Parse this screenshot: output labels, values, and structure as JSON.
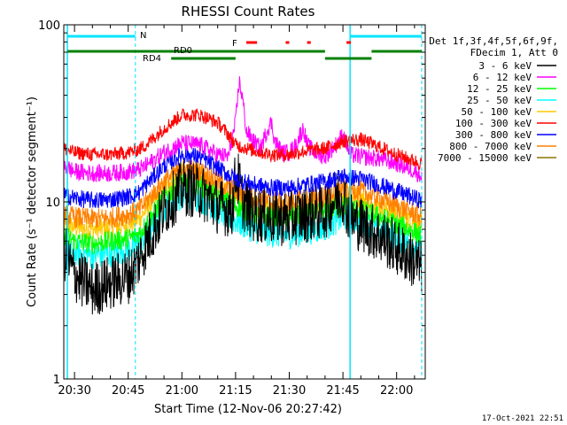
{
  "chart_data": {
    "type": "line",
    "title": "RHESSI Count Rates",
    "xlabel": "Start Time (12-Nov-06 20:27:42)",
    "ylabel": "Count Rate (s⁻¹ detector segment⁻¹)",
    "y_scale": "log",
    "ylim": [
      1,
      100
    ],
    "x_range_minutes": [
      "20:27",
      "22:08"
    ],
    "x_ticks": [
      "20:30",
      "20:45",
      "21:00",
      "21:15",
      "21:30",
      "21:45",
      "22:00"
    ],
    "y_ticks": [
      "1",
      "10",
      "100"
    ],
    "timestamp": "17-Oct-2021 22:51",
    "legend": {
      "header": [
        "Det 1f,3f,4f,5f,6f,9f,",
        "FDecim 1, Att 0"
      ],
      "placement": "right"
    },
    "bars": {
      "N": {
        "label": "N",
        "color": "#00e5ff",
        "segments": [
          [
            "20:28",
            "20:47"
          ],
          [
            "21:47",
            "22:07"
          ]
        ]
      },
      "RD0": {
        "label": "RD0",
        "color": "#008000",
        "segments": [
          [
            "20:28",
            "21:16"
          ],
          [
            "21:16",
            "21:40"
          ],
          [
            "21:53",
            "22:07"
          ]
        ]
      },
      "RD4": {
        "label": "RD4",
        "color": "#008000",
        "segments": [
          [
            "20:57",
            "21:15"
          ],
          [
            "21:40",
            "21:53"
          ]
        ]
      },
      "F": {
        "label": "F",
        "color": "#ff0000",
        "segments": [
          [
            "21:18",
            "21:21"
          ],
          [
            "21:29",
            "21:30"
          ],
          [
            "21:35",
            "21:36"
          ],
          [
            "21:46",
            "21:46"
          ]
        ]
      }
    },
    "vlines_solid": [
      "20:28",
      "21:47"
    ],
    "vlines_dashed": [
      "20:47",
      "22:07"
    ],
    "series": [
      {
        "name": "3 - 6 keV",
        "color": "#000000",
        "points": [
          [
            "20:27",
            5.2
          ],
          [
            "20:30",
            3.9
          ],
          [
            "20:35",
            3.2
          ],
          [
            "20:40",
            3.5
          ],
          [
            "20:45",
            3.8
          ],
          [
            "20:47",
            4.3
          ],
          [
            "20:50",
            5.8
          ],
          [
            "20:55",
            9.0
          ],
          [
            "21:00",
            12.0
          ],
          [
            "21:05",
            11.5
          ],
          [
            "21:10",
            9.5
          ],
          [
            "21:14",
            9.0
          ],
          [
            "21:15",
            14.0
          ],
          [
            "21:16",
            13.0
          ],
          [
            "21:17",
            10.0
          ],
          [
            "21:20",
            8.5
          ],
          [
            "21:25",
            8.2
          ],
          [
            "21:30",
            8.0
          ],
          [
            "21:35",
            8.5
          ],
          [
            "21:40",
            8.8
          ],
          [
            "21:43",
            10.5
          ],
          [
            "21:45",
            11.0
          ],
          [
            "21:47",
            8.0
          ],
          [
            "21:50",
            7.5
          ],
          [
            "21:55",
            6.5
          ],
          [
            "22:00",
            5.5
          ],
          [
            "22:05",
            4.6
          ],
          [
            "22:07",
            4.2
          ]
        ]
      },
      {
        "name": "6 - 12 keV",
        "color": "#ff00ff",
        "points": [
          [
            "20:27",
            16.0
          ],
          [
            "20:30",
            14.8
          ],
          [
            "20:35",
            14.5
          ],
          [
            "20:40",
            14.5
          ],
          [
            "20:45",
            14.8
          ],
          [
            "20:48",
            15.2
          ],
          [
            "20:50",
            16.0
          ],
          [
            "20:55",
            19.0
          ],
          [
            "21:00",
            21.5
          ],
          [
            "21:05",
            21.0
          ],
          [
            "21:10",
            18.5
          ],
          [
            "21:13",
            18.0
          ],
          [
            "21:15",
            28.0
          ],
          [
            "21:16",
            48.0
          ],
          [
            "21:17",
            38.0
          ],
          [
            "21:18",
            25.0
          ],
          [
            "21:20",
            22.0
          ],
          [
            "21:22",
            20.0
          ],
          [
            "21:24",
            26.0
          ],
          [
            "21:25",
            28.0
          ],
          [
            "21:26",
            22.0
          ],
          [
            "21:28",
            19.0
          ],
          [
            "21:30",
            19.0
          ],
          [
            "21:32",
            21.0
          ],
          [
            "21:33",
            24.0
          ],
          [
            "21:34",
            26.0
          ],
          [
            "21:35",
            21.0
          ],
          [
            "21:37",
            19.0
          ],
          [
            "21:40",
            18.0
          ],
          [
            "21:43",
            21.0
          ],
          [
            "21:45",
            24.0
          ],
          [
            "21:47",
            18.5
          ],
          [
            "21:50",
            18.0
          ],
          [
            "21:55",
            17.5
          ],
          [
            "22:00",
            16.5
          ],
          [
            "22:05",
            15.0
          ],
          [
            "22:07",
            14.0
          ]
        ]
      },
      {
        "name": "12 - 25 keV",
        "color": "#00ff00",
        "points": [
          [
            "20:27",
            6.5
          ],
          [
            "20:30",
            6.0
          ],
          [
            "20:35",
            5.8
          ],
          [
            "20:40",
            6.0
          ],
          [
            "20:45",
            6.2
          ],
          [
            "20:48",
            6.6
          ],
          [
            "20:50",
            7.5
          ],
          [
            "20:55",
            10.5
          ],
          [
            "21:00",
            13.0
          ],
          [
            "21:05",
            12.5
          ],
          [
            "21:10",
            10.5
          ],
          [
            "21:15",
            9.5
          ],
          [
            "21:20",
            8.5
          ],
          [
            "21:25",
            8.2
          ],
          [
            "21:30",
            8.2
          ],
          [
            "21:35",
            8.5
          ],
          [
            "21:40",
            8.8
          ],
          [
            "21:45",
            9.5
          ],
          [
            "21:50",
            9.0
          ],
          [
            "21:55",
            8.3
          ],
          [
            "22:00",
            7.5
          ],
          [
            "22:05",
            6.8
          ],
          [
            "22:07",
            6.4
          ]
        ]
      },
      {
        "name": "25 - 50 keV",
        "color": "#00ffff",
        "points": [
          [
            "20:27",
            5.5
          ],
          [
            "20:30",
            5.2
          ],
          [
            "20:35",
            5.0
          ],
          [
            "20:40",
            5.1
          ],
          [
            "20:45",
            5.4
          ],
          [
            "20:48",
            5.8
          ],
          [
            "20:50",
            6.5
          ],
          [
            "20:55",
            9.0
          ],
          [
            "21:00",
            11.0
          ],
          [
            "21:05",
            10.5
          ],
          [
            "21:10",
            9.0
          ],
          [
            "21:15",
            7.8
          ],
          [
            "21:20",
            7.0
          ],
          [
            "21:25",
            6.6
          ],
          [
            "21:30",
            6.5
          ],
          [
            "21:35",
            6.8
          ],
          [
            "21:40",
            7.2
          ],
          [
            "21:45",
            8.2
          ],
          [
            "21:50",
            7.8
          ],
          [
            "21:55",
            7.0
          ],
          [
            "22:00",
            6.3
          ],
          [
            "22:05",
            5.7
          ],
          [
            "22:07",
            5.4
          ]
        ]
      },
      {
        "name": "50 - 100 keV",
        "color": "#ffc800",
        "points": [
          [
            "20:27",
            7.5
          ],
          [
            "20:30",
            7.2
          ],
          [
            "20:35",
            7.0
          ],
          [
            "20:40",
            7.1
          ],
          [
            "20:45",
            7.5
          ],
          [
            "20:48",
            8.0
          ],
          [
            "20:50",
            9.0
          ],
          [
            "20:55",
            12.0
          ],
          [
            "21:00",
            14.5
          ],
          [
            "21:05",
            14.0
          ],
          [
            "21:10",
            12.0
          ],
          [
            "21:15",
            10.5
          ],
          [
            "21:20",
            9.5
          ],
          [
            "21:25",
            9.2
          ],
          [
            "21:30",
            9.0
          ],
          [
            "21:35",
            9.3
          ],
          [
            "21:40",
            9.8
          ],
          [
            "21:45",
            11.0
          ],
          [
            "21:50",
            10.5
          ],
          [
            "21:55",
            9.5
          ],
          [
            "22:00",
            8.6
          ],
          [
            "22:05",
            7.8
          ],
          [
            "22:07",
            7.4
          ]
        ]
      },
      {
        "name": "100 - 300 keV",
        "color": "#ff0000",
        "points": [
          [
            "20:27",
            20.0
          ],
          [
            "20:30",
            19.0
          ],
          [
            "20:35",
            18.5
          ],
          [
            "20:40",
            18.5
          ],
          [
            "20:45",
            19.0
          ],
          [
            "20:48",
            19.8
          ],
          [
            "20:50",
            21.0
          ],
          [
            "20:55",
            26.0
          ],
          [
            "21:00",
            31.0
          ],
          [
            "21:05",
            31.0
          ],
          [
            "21:10",
            28.0
          ],
          [
            "21:13",
            24.0
          ],
          [
            "21:15",
            21.0
          ],
          [
            "21:20",
            19.5
          ],
          [
            "21:25",
            18.5
          ],
          [
            "21:30",
            18.5
          ],
          [
            "21:35",
            19.5
          ],
          [
            "21:40",
            20.0
          ],
          [
            "21:45",
            22.0
          ],
          [
            "21:50",
            22.5
          ],
          [
            "21:55",
            20.5
          ],
          [
            "22:00",
            18.5
          ],
          [
            "22:05",
            17.0
          ],
          [
            "22:07",
            16.5
          ]
        ]
      },
      {
        "name": "300 - 800 keV",
        "color": "#0000ff",
        "points": [
          [
            "20:27",
            11.0
          ],
          [
            "20:30",
            10.5
          ],
          [
            "20:35",
            10.2
          ],
          [
            "20:40",
            10.3
          ],
          [
            "20:45",
            10.7
          ],
          [
            "20:48",
            11.3
          ],
          [
            "20:50",
            12.5
          ],
          [
            "20:55",
            16.0
          ],
          [
            "21:00",
            18.5
          ],
          [
            "21:05",
            18.0
          ],
          [
            "21:10",
            15.5
          ],
          [
            "21:15",
            13.5
          ],
          [
            "21:20",
            12.5
          ],
          [
            "21:25",
            12.0
          ],
          [
            "21:30",
            12.0
          ],
          [
            "21:35",
            12.5
          ],
          [
            "21:40",
            13.0
          ],
          [
            "21:45",
            14.0
          ],
          [
            "21:50",
            13.5
          ],
          [
            "21:55",
            12.5
          ],
          [
            "22:00",
            11.5
          ],
          [
            "22:05",
            10.5
          ],
          [
            "22:07",
            10.2
          ]
        ]
      },
      {
        "name": "800 - 7000 keV",
        "color": "#ff8000",
        "points": [
          [
            "20:27",
            8.5
          ],
          [
            "20:30",
            8.2
          ],
          [
            "20:35",
            8.0
          ],
          [
            "20:40",
            8.1
          ],
          [
            "20:45",
            8.5
          ],
          [
            "20:48",
            9.0
          ],
          [
            "20:50",
            10.0
          ],
          [
            "20:55",
            13.0
          ],
          [
            "21:00",
            15.5
          ],
          [
            "21:05",
            15.0
          ],
          [
            "21:10",
            13.0
          ],
          [
            "21:15",
            11.5
          ],
          [
            "21:20",
            10.5
          ],
          [
            "21:25",
            10.0
          ],
          [
            "21:30",
            10.0
          ],
          [
            "21:35",
            10.3
          ],
          [
            "21:40",
            10.8
          ],
          [
            "21:45",
            12.0
          ],
          [
            "21:50",
            11.5
          ],
          [
            "21:55",
            10.5
          ],
          [
            "22:00",
            9.5
          ],
          [
            "22:05",
            8.6
          ],
          [
            "22:07",
            8.2
          ]
        ]
      },
      {
        "name": "7000 - 15000 keV",
        "color": "#8b7500",
        "points": []
      }
    ]
  }
}
